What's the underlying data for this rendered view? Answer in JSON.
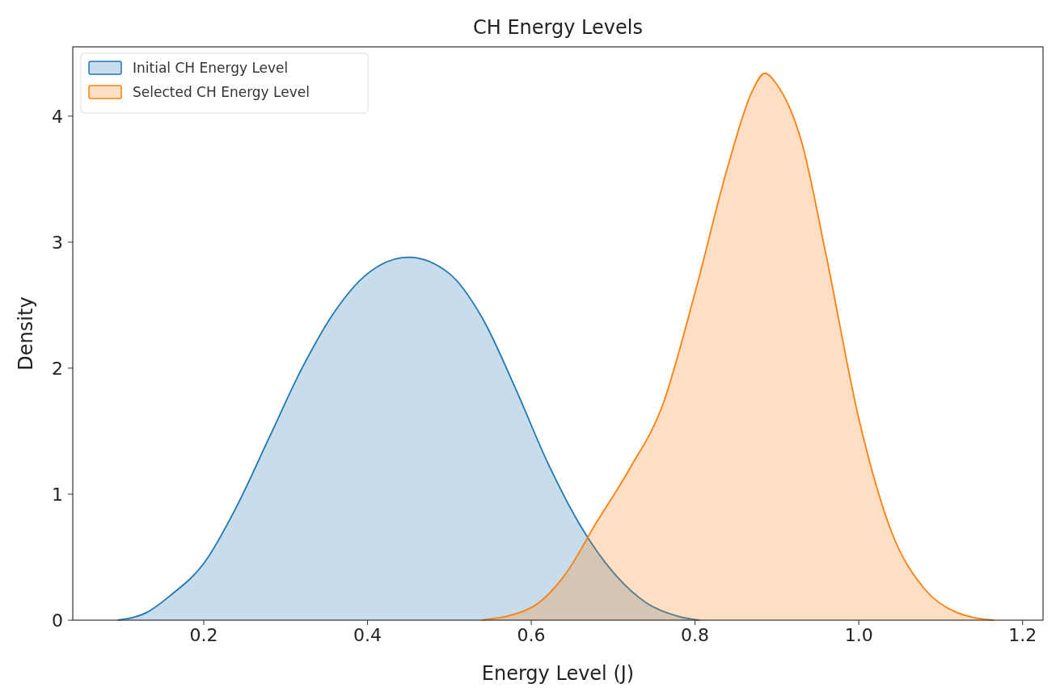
{
  "chart_data": {
    "type": "area",
    "title": "CH Energy Levels",
    "xlabel": "Energy Level (J)",
    "ylabel": "Density",
    "series": [
      {
        "name": "Initial CH Energy Level",
        "color": "#1f77b4",
        "x": [
          0.095,
          0.13,
          0.16,
          0.2,
          0.24,
          0.28,
          0.32,
          0.36,
          0.4,
          0.45,
          0.5,
          0.54,
          0.58,
          0.62,
          0.66,
          0.7,
          0.74,
          0.78,
          0.805
        ],
        "values": [
          0,
          0.06,
          0.2,
          0.45,
          0.9,
          1.45,
          2.0,
          2.45,
          2.75,
          2.88,
          2.75,
          2.4,
          1.85,
          1.25,
          0.75,
          0.38,
          0.14,
          0.03,
          0
        ]
      },
      {
        "name": "Selected CH Energy Level",
        "color": "#ff7f0e",
        "x": [
          0.54,
          0.6,
          0.64,
          0.68,
          0.72,
          0.76,
          0.8,
          0.84,
          0.87,
          0.885,
          0.9,
          0.93,
          0.96,
          1.0,
          1.04,
          1.08,
          1.12,
          1.165
        ],
        "values": [
          0,
          0.1,
          0.35,
          0.78,
          1.2,
          1.7,
          2.6,
          3.6,
          4.2,
          4.34,
          4.25,
          3.8,
          2.9,
          1.6,
          0.7,
          0.25,
          0.06,
          0
        ]
      }
    ],
    "xlim": [
      0.04,
      1.225
    ],
    "xticks": [
      0.2,
      0.4,
      0.6,
      0.8,
      {
        "value": 1,
        "label": "1.0"
      },
      1.2
    ],
    "ylim": [
      0,
      4.55
    ],
    "yticks": [
      0,
      1,
      2,
      3,
      4
    ],
    "grid": false,
    "legend": "top left"
  }
}
